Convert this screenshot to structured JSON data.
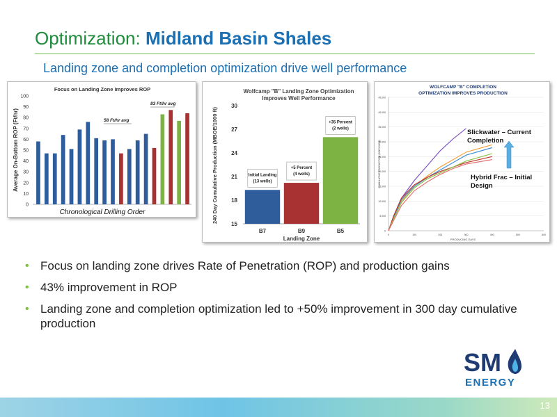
{
  "slide": {
    "title_prefix": "Optimization:",
    "title_bold": "Midland Basin Shales",
    "subtitle": "Landing zone and completion optimization drive well performance",
    "page_number": "13"
  },
  "colors": {
    "green": "#1e8c3a",
    "blue": "#1b6fb3",
    "bar_blue": "#2f5d9c",
    "bar_red": "#a83232",
    "bar_green": "#7cb342"
  },
  "bullets": [
    "Focus on landing zone drives Rate of Penetration (ROP) and production gains",
    "43% improvement in ROP",
    "Landing zone and completion optimization led to +50% improvement in 300 day cumulative production"
  ],
  "logo": {
    "text_top": "SM",
    "text_bottom": "ENERGY",
    "icon": "flame-icon"
  },
  "chart_data": [
    {
      "type": "bar",
      "title": "Focus on Landing Zone Improves ROP",
      "ylabel": "Average On-Bottom ROP (Ft/hr)",
      "xlabel": "Chronological Drilling Order",
      "ylim": [
        0,
        100
      ],
      "yticks": [
        "0",
        "10",
        "20",
        "30",
        "40",
        "50",
        "60",
        "70",
        "80",
        "90",
        "100"
      ],
      "values": [
        58,
        47,
        47,
        64,
        51,
        69,
        76,
        61,
        59,
        60,
        47,
        51,
        59,
        65,
        52,
        83,
        87,
        77,
        84
      ],
      "bar_colors": [
        "blue",
        "blue",
        "blue",
        "blue",
        "blue",
        "blue",
        "blue",
        "blue",
        "blue",
        "blue",
        "red",
        "blue",
        "blue",
        "blue",
        "red",
        "green",
        "red",
        "green",
        "red"
      ],
      "annotations": [
        "58 Ft/hr avg",
        "83 Ft/hr avg"
      ]
    },
    {
      "type": "bar",
      "title": "Wolfcamp \"B\" Landing Zone Optimization Improves Well Performance",
      "ylabel": "240 Day Cumulative Production (MBOE/1000 ft)",
      "xlabel": "Landing Zone",
      "ylim": [
        15,
        30
      ],
      "yticks": [
        "15",
        "18",
        "21",
        "24",
        "27",
        "30"
      ],
      "categories": [
        "B7",
        "B9",
        "B5"
      ],
      "values": [
        19.3,
        20.2,
        26.0
      ],
      "bar_colors": [
        "blue",
        "red",
        "green"
      ],
      "labels": [
        [
          "Initial Landing",
          "(13 wells)"
        ],
        [
          "+5 Percent",
          "(4 wells)"
        ],
        [
          "+35 Percent",
          "(2 wells)"
        ]
      ]
    },
    {
      "type": "line",
      "title": "WOLFCAMP \"B\" COMPLETION OPTIMIZATION IMPROVES PRODUCTION",
      "xlabel": "PRODUCING DAYS",
      "ylabel": "CUMULATIVE PRODUCTION (BOE/1000 ft)",
      "xlim": [
        0,
        600
      ],
      "ylim": [
        0,
        45000
      ],
      "xticks": [
        "0",
        "100",
        "200",
        "300",
        "400",
        "500",
        "600"
      ],
      "yticks": [
        "0",
        "5,000",
        "10,000",
        "15,000",
        "20,000",
        "25,000",
        "30,000",
        "35,000",
        "40,000",
        "45,000"
      ],
      "annotations": [
        "Slickwater – Current Completion",
        "Hybrid Frac – Initial Design"
      ],
      "series": [
        {
          "color": "#7e57c2",
          "x": [
            0,
            20,
            50,
            100,
            150,
            200,
            250,
            300
          ],
          "y": [
            0,
            5000,
            11000,
            17000,
            22000,
            27000,
            31000,
            34500
          ]
        },
        {
          "color": "#f4a13c",
          "x": [
            0,
            20,
            50,
            100,
            150,
            200,
            250,
            300,
            400
          ],
          "y": [
            0,
            4000,
            10000,
            15000,
            18500,
            21500,
            24000,
            26500,
            29000
          ]
        },
        {
          "color": "#3f8fd8",
          "x": [
            0,
            20,
            50,
            100,
            150,
            200,
            250,
            300,
            400
          ],
          "y": [
            0,
            4500,
            10500,
            15000,
            18000,
            20500,
            23000,
            25500,
            28000
          ]
        },
        {
          "color": "#c0392b",
          "x": [
            0,
            20,
            50,
            100,
            150,
            200,
            250,
            300,
            400
          ],
          "y": [
            0,
            5000,
            11000,
            15500,
            18000,
            20000,
            21500,
            23000,
            25000
          ]
        },
        {
          "color": "#8bc34a",
          "x": [
            0,
            20,
            50,
            100,
            150,
            200,
            250,
            300,
            400
          ],
          "y": [
            0,
            4000,
            9500,
            14500,
            17500,
            19500,
            21500,
            23500,
            26000
          ]
        },
        {
          "color": "#e57373",
          "x": [
            0,
            20,
            50,
            100,
            150,
            200,
            250,
            300,
            400
          ],
          "y": [
            0,
            3500,
            8500,
            13500,
            16500,
            19000,
            21000,
            22500,
            24000
          ]
        }
      ]
    }
  ]
}
